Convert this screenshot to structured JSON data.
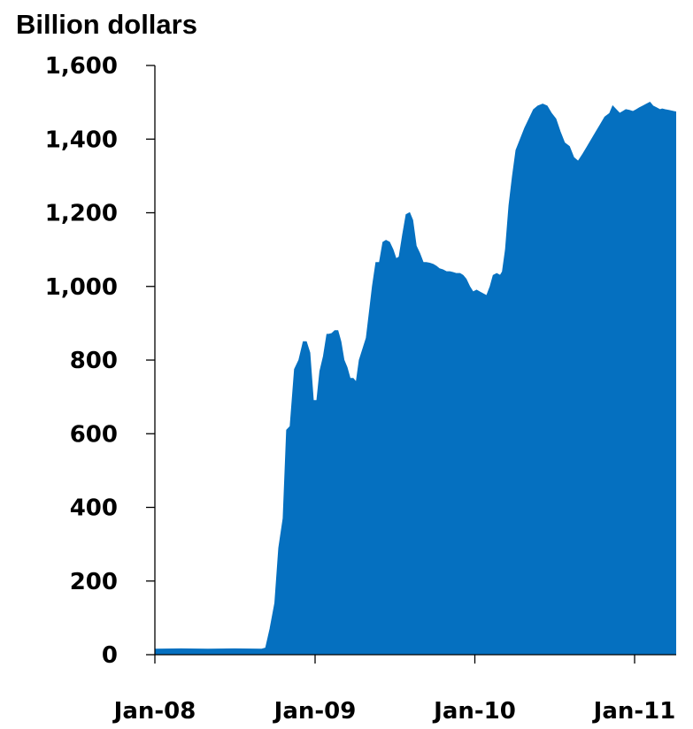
{
  "chart_data": {
    "type": "area",
    "title": "",
    "unit_label": "Billion dollars",
    "xlabel": "",
    "ylabel": "",
    "x_ticks": [
      "Jan-08",
      "Jan-09",
      "Jan-10",
      "Jan-11"
    ],
    "y_ticks": [
      "0",
      "200",
      "400",
      "600",
      "800",
      "1,000",
      "1,200",
      "1,400",
      "1,600"
    ],
    "ylim": [
      0,
      1600
    ],
    "xlim": [
      "2008-01-01",
      "2011-04-15"
    ],
    "grid": false,
    "legend": "none",
    "color": "#0570C0",
    "series": [
      {
        "x": [
          "2008-01-01",
          "2008-03-01",
          "2008-05-01",
          "2008-07-01",
          "2008-09-01",
          "2008-09-10",
          "2008-09-20",
          "2008-10-01",
          "2008-10-10",
          "2008-10-20",
          "2008-10-28",
          "2008-11-05",
          "2008-11-15",
          "2008-11-25",
          "2008-12-05",
          "2008-12-12",
          "2008-12-20",
          "2008-12-28",
          "2009-01-05",
          "2009-01-12",
          "2009-01-20",
          "2009-01-28",
          "2009-02-01",
          "2009-02-08",
          "2009-02-15",
          "2009-02-22",
          "2009-03-01",
          "2009-03-08",
          "2009-03-15",
          "2009-03-22",
          "2009-03-29",
          "2009-04-05",
          "2009-04-12",
          "2009-04-20",
          "2009-04-28",
          "2009-05-05",
          "2009-05-12",
          "2009-05-20",
          "2009-05-28",
          "2009-06-05",
          "2009-06-12",
          "2009-06-20",
          "2009-06-28",
          "2009-07-05",
          "2009-07-12",
          "2009-07-20",
          "2009-07-28",
          "2009-08-05",
          "2009-08-12",
          "2009-08-20",
          "2009-08-28",
          "2009-09-05",
          "2009-09-12",
          "2009-09-20",
          "2009-09-28",
          "2009-10-05",
          "2009-10-12",
          "2009-10-20",
          "2009-10-28",
          "2009-11-05",
          "2009-11-12",
          "2009-11-20",
          "2009-11-28",
          "2009-12-05",
          "2009-12-12",
          "2009-12-20",
          "2009-12-28",
          "2010-01-05",
          "2010-01-12",
          "2010-01-20",
          "2010-01-28",
          "2010-02-05",
          "2010-02-12",
          "2010-02-20",
          "2010-02-28",
          "2010-03-05",
          "2010-03-12",
          "2010-03-20",
          "2010-03-28",
          "2010-04-05",
          "2010-04-15",
          "2010-04-25",
          "2010-05-05",
          "2010-05-15",
          "2010-05-25",
          "2010-06-05",
          "2010-06-15",
          "2010-06-25",
          "2010-07-05",
          "2010-07-15",
          "2010-07-25",
          "2010-08-05",
          "2010-08-15",
          "2010-08-25",
          "2010-09-05",
          "2010-09-15",
          "2010-09-25",
          "2010-10-05",
          "2010-10-15",
          "2010-10-25",
          "2010-11-05",
          "2010-11-12",
          "2010-11-20",
          "2010-11-28",
          "2010-12-05",
          "2010-12-12",
          "2010-12-20",
          "2010-12-28",
          "2011-01-05",
          "2011-01-12",
          "2011-01-20",
          "2011-01-28",
          "2011-02-05",
          "2011-02-12",
          "2011-02-20",
          "2011-02-28",
          "2011-03-05",
          "2011-03-12",
          "2011-03-20",
          "2011-03-28",
          "2011-04-05",
          "2011-04-12",
          "2011-04-15"
        ],
        "y": [
          15,
          16,
          15,
          16,
          15,
          18,
          70,
          140,
          290,
          370,
          610,
          620,
          775,
          800,
          850,
          850,
          820,
          690,
          690,
          770,
          810,
          870,
          870,
          872,
          880,
          880,
          850,
          800,
          780,
          750,
          750,
          740,
          800,
          830,
          860,
          930,
          1000,
          1065,
          1065,
          1120,
          1125,
          1120,
          1100,
          1075,
          1080,
          1140,
          1195,
          1200,
          1180,
          1110,
          1090,
          1065,
          1065,
          1063,
          1060,
          1055,
          1048,
          1045,
          1040,
          1040,
          1038,
          1035,
          1035,
          1030,
          1020,
          1000,
          985,
          990,
          985,
          980,
          975,
          1000,
          1030,
          1035,
          1030,
          1040,
          1100,
          1220,
          1300,
          1370,
          1400,
          1430,
          1455,
          1480,
          1490,
          1495,
          1490,
          1470,
          1455,
          1420,
          1390,
          1380,
          1350,
          1340,
          1360,
          1380,
          1400,
          1420,
          1440,
          1460,
          1470,
          1490,
          1480,
          1470,
          1475,
          1480,
          1478,
          1475,
          1480,
          1485,
          1490,
          1495,
          1500,
          1490,
          1485,
          1480,
          1482,
          1480,
          1478,
          1476,
          1474,
          1475,
          1480
        ]
      }
    ]
  }
}
